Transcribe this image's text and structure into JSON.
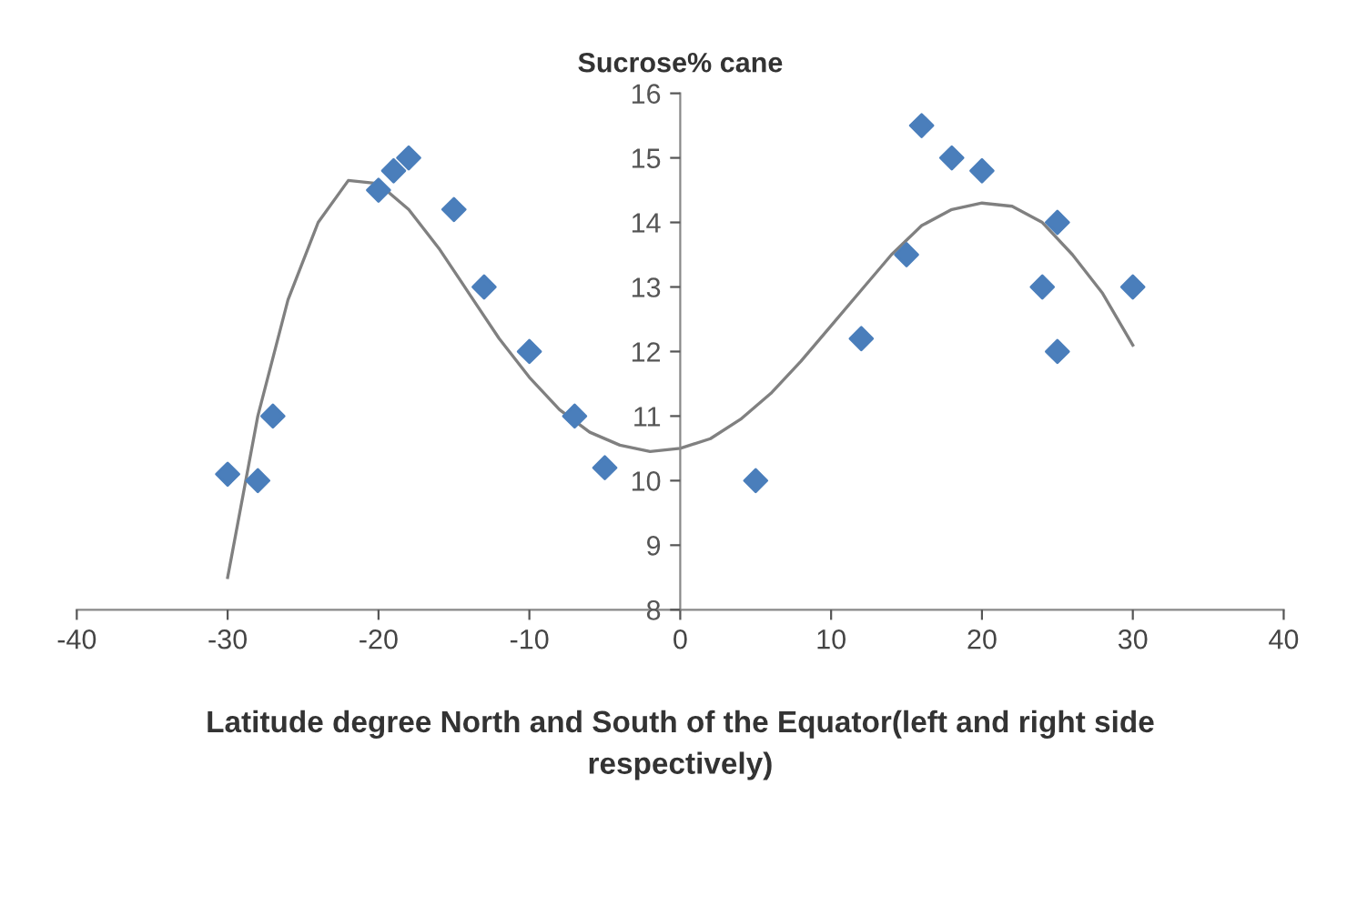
{
  "chart_data": {
    "type": "scatter",
    "ylabel": "Sucrose% cane",
    "xlabel": "Latitude degree North and South of the Equator(left and right side\nrespectively)",
    "xlim": [
      -40,
      40
    ],
    "xticks": [
      -40,
      -30,
      -20,
      -10,
      0,
      10,
      20,
      30,
      40
    ],
    "ylim": [
      8,
      16
    ],
    "yticks": [
      8,
      9,
      10,
      11,
      12,
      13,
      14,
      15,
      16
    ],
    "grid": false,
    "legend": false,
    "series": [
      {
        "color": "#4a7ebb",
        "marker": "diamond",
        "x": [
          -30,
          -28,
          -27,
          -20,
          -19,
          -18.5,
          -18,
          -15,
          -13,
          -10,
          -7,
          -5,
          5,
          12,
          15,
          16,
          18,
          20,
          24,
          25,
          25,
          30
        ],
        "values": [
          10.1,
          10.0,
          11.0,
          14.5,
          14.8,
          null,
          15.0,
          14.2,
          13.0,
          12.0,
          11.0,
          10.2,
          10.0,
          12.2,
          13.5,
          15.5,
          15.0,
          14.8,
          13.0,
          14.0,
          12.0,
          13.0
        ]
      },
      {
        "type": "line",
        "color": "#808080",
        "marker": "none",
        "line_style": "solid",
        "x": [
          -30,
          -28,
          -26,
          -24,
          -22,
          -20,
          -18,
          -16,
          -14,
          -12,
          -10,
          -8,
          -6,
          -4,
          -2,
          0,
          2,
          4,
          6,
          8,
          10,
          12,
          14,
          16,
          18,
          20,
          22,
          24,
          26,
          28,
          30
        ],
        "values": [
          8.5,
          11.0,
          12.8,
          14.0,
          14.65,
          14.6,
          14.2,
          13.6,
          12.9,
          12.2,
          11.6,
          11.1,
          10.75,
          10.55,
          10.45,
          10.5,
          10.65,
          10.95,
          11.35,
          11.85,
          12.4,
          12.95,
          13.5,
          13.95,
          14.2,
          14.3,
          14.25,
          14.0,
          13.5,
          12.9,
          12.1
        ]
      }
    ]
  }
}
